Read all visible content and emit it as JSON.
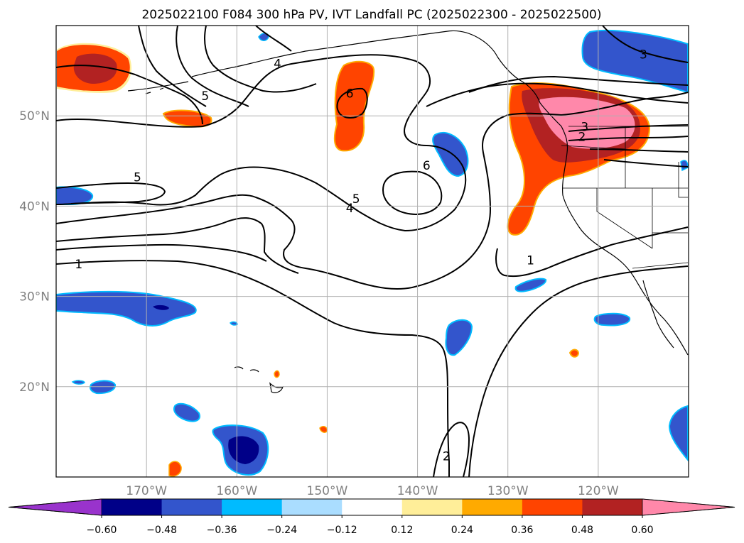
{
  "chart_data": {
    "type": "heatmap",
    "title": "2025022100 F084 300 hPa PV, IVT Landfall PC (2025022300 - 2025022500)",
    "xlabel": "",
    "ylabel": "",
    "map": {
      "lon_range": [
        -180,
        -110
      ],
      "lat_range": [
        10,
        60
      ],
      "x_ticks": [
        {
          "lon": -170,
          "label": "170°W"
        },
        {
          "lon": -160,
          "label": "160°W"
        },
        {
          "lon": -150,
          "label": "150°W"
        },
        {
          "lon": -140,
          "label": "140°W"
        },
        {
          "lon": -130,
          "label": "130°W"
        },
        {
          "lon": -120,
          "label": "120°W"
        }
      ],
      "y_ticks": [
        {
          "lat": 50,
          "label": "50°N"
        },
        {
          "lat": 40,
          "label": "40°N"
        },
        {
          "lat": 30,
          "label": "30°N"
        },
        {
          "lat": 20,
          "label": "20°N"
        }
      ],
      "grid": true
    },
    "colorbar": {
      "extend": "both",
      "boundaries": [
        -0.6,
        -0.48,
        -0.36,
        -0.24,
        -0.12,
        0.12,
        0.24,
        0.36,
        0.48,
        0.6
      ],
      "tick_labels": [
        "−0.60",
        "−0.48",
        "−0.36",
        "−0.24",
        "−0.12",
        "0.12",
        "0.24",
        "0.36",
        "0.48",
        "0.60"
      ],
      "colors": [
        "#9933cc",
        "#000088",
        "#3355cc",
        "#00bbff",
        "#aaddff",
        "#ffffff",
        "#ffee99",
        "#ffaa00",
        "#ff4400",
        "#b22222",
        "#ff88aa"
      ]
    },
    "contour_labels": [
      {
        "text": "4",
        "lon": -155.5,
        "lat": 55.8
      },
      {
        "text": "5",
        "lon": -163.5,
        "lat": 52.2
      },
      {
        "text": "5",
        "lon": -171,
        "lat": 43.2
      },
      {
        "text": "6",
        "lon": -147.5,
        "lat": 52.5
      },
      {
        "text": "6",
        "lon": -139,
        "lat": 44.5
      },
      {
        "text": "5",
        "lon": -146.8,
        "lat": 40.8
      },
      {
        "text": "4",
        "lon": -147.5,
        "lat": 39.8
      },
      {
        "text": "1",
        "lon": -177.5,
        "lat": 33.6
      },
      {
        "text": "1",
        "lon": -127.5,
        "lat": 34
      },
      {
        "text": "3",
        "lon": -115,
        "lat": 56.8
      },
      {
        "text": "3",
        "lon": -121.5,
        "lat": 48.8
      },
      {
        "text": "2",
        "lon": -121.8,
        "lat": 47.7
      },
      {
        "text": "2",
        "lon": -136.8,
        "lat": 12.3
      }
    ],
    "shaded_regions": [
      {
        "value_range": [
          0.36,
          0.48
        ],
        "center": [
          -175.5,
          55.5
        ]
      },
      {
        "value_range": [
          0.48,
          0.6
        ],
        "center": [
          -175.5,
          55.5
        ]
      },
      {
        "value_range": [
          0.36,
          0.48
        ],
        "center": [
          -147.5,
          50.5
        ]
      },
      {
        "value_range": [
          0.36,
          0.48
        ],
        "center": [
          -123,
          45.5
        ]
      },
      {
        "value_range": [
          0.48,
          0.6
        ],
        "center": [
          -122,
          47.5
        ]
      },
      {
        "value_range": [
          0.6,
          0.72
        ],
        "center": [
          -119.5,
          48.5
        ]
      },
      {
        "value_range": [
          -0.36,
          -0.24
        ],
        "center": [
          -116,
          57
        ]
      },
      {
        "value_range": [
          -0.36,
          -0.24
        ],
        "center": [
          -172,
          29.5
        ]
      },
      {
        "value_range": [
          -0.48,
          -0.36
        ],
        "center": [
          -159,
          13
        ]
      },
      {
        "value_range": [
          -0.36,
          -0.24
        ],
        "center": [
          -135.5,
          47
        ]
      },
      {
        "value_range": [
          -0.36,
          -0.24
        ],
        "center": [
          -136.5,
          24.5
        ]
      }
    ]
  }
}
